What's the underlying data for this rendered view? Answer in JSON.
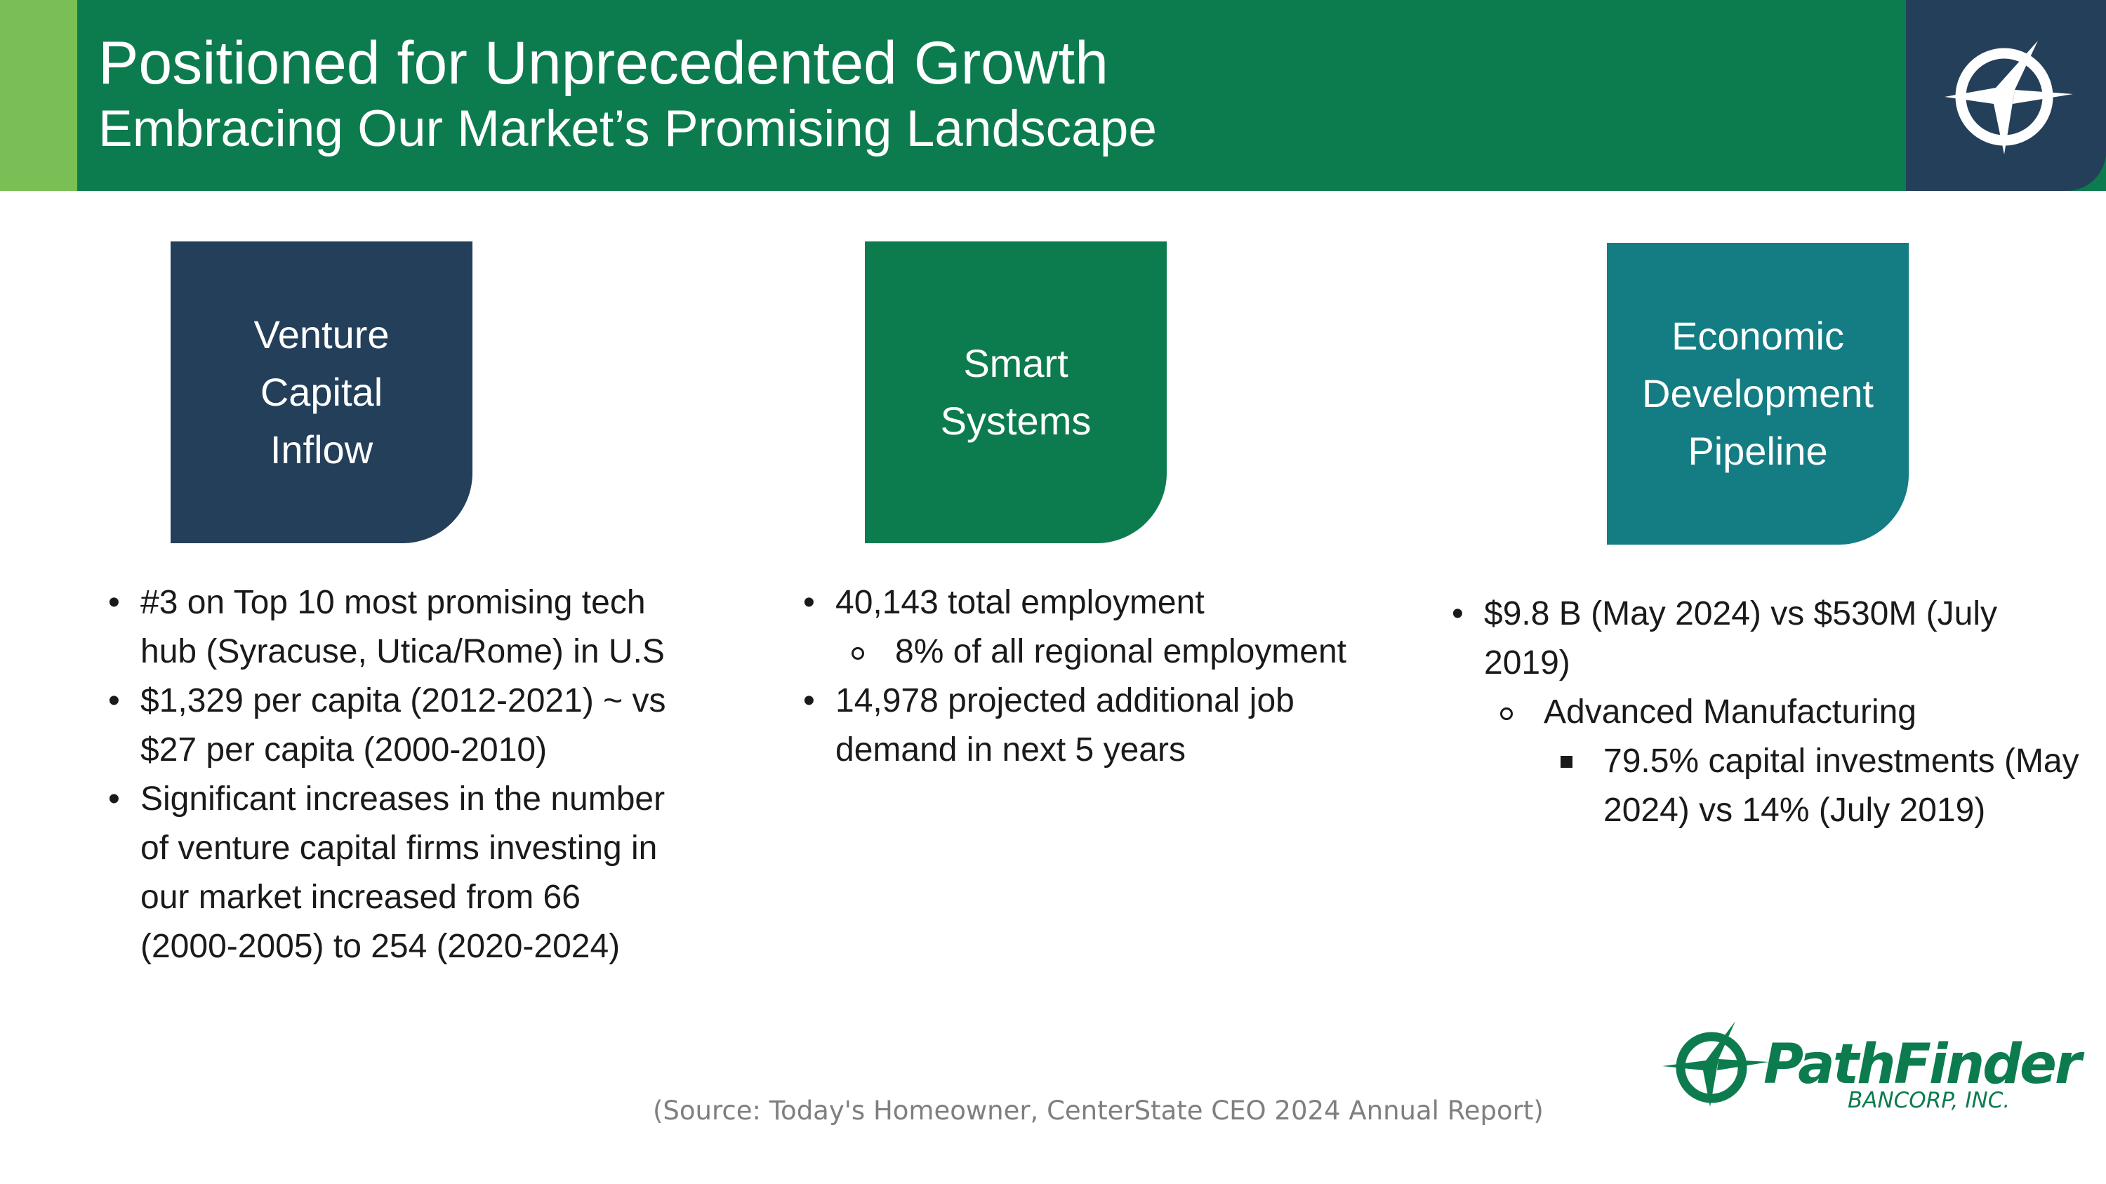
{
  "header": {
    "title": "Positioned for Unprecedented Growth",
    "subtitle": "Embracing Our Market’s Promising Landscape",
    "logo_icon": "compass-star-icon"
  },
  "columns": [
    {
      "heading": [
        "Venture",
        "Capital",
        "Inflow"
      ],
      "color": "#243f5a",
      "bullets": [
        "#3 on Top 10 most promising tech hub (Syracuse, Utica/Rome) in U.S",
        "$1,329 per capita (2012-2021) ~ vs $27 per capita (2000-2010)",
        "Significant increases in the number of venture capital firms investing in our market increased from 66 (2000-2005) to 254 (2020-2024)"
      ]
    },
    {
      "heading": [
        "Smart",
        "Systems"
      ],
      "color": "#0c7c4e",
      "bullets": [
        "40,143 total employment",
        "8% of all regional employment",
        "14,978 projected additional job demand in next 5 years"
      ]
    },
    {
      "heading": [
        "Economic",
        "Development",
        "Pipeline"
      ],
      "color": "#137d83",
      "bullets": [
        "$9.8 B (May 2024) vs $530M (July 2019)",
        "Advanced Manufacturing",
        "79.5% capital investments (May 2024) vs 14% (July 2019)"
      ]
    }
  ],
  "source": "(Source: Today's Homeowner, CenterState CEO 2024 Annual Report)",
  "logo": {
    "name": "PathFinder",
    "sub": "BANCORP, INC.",
    "icon": "pathfinder-compass-icon"
  },
  "colors": {
    "header_green": "#0c7c4e",
    "accent_light_green": "#79bf55",
    "navy": "#243f5a",
    "teal": "#137d83"
  }
}
